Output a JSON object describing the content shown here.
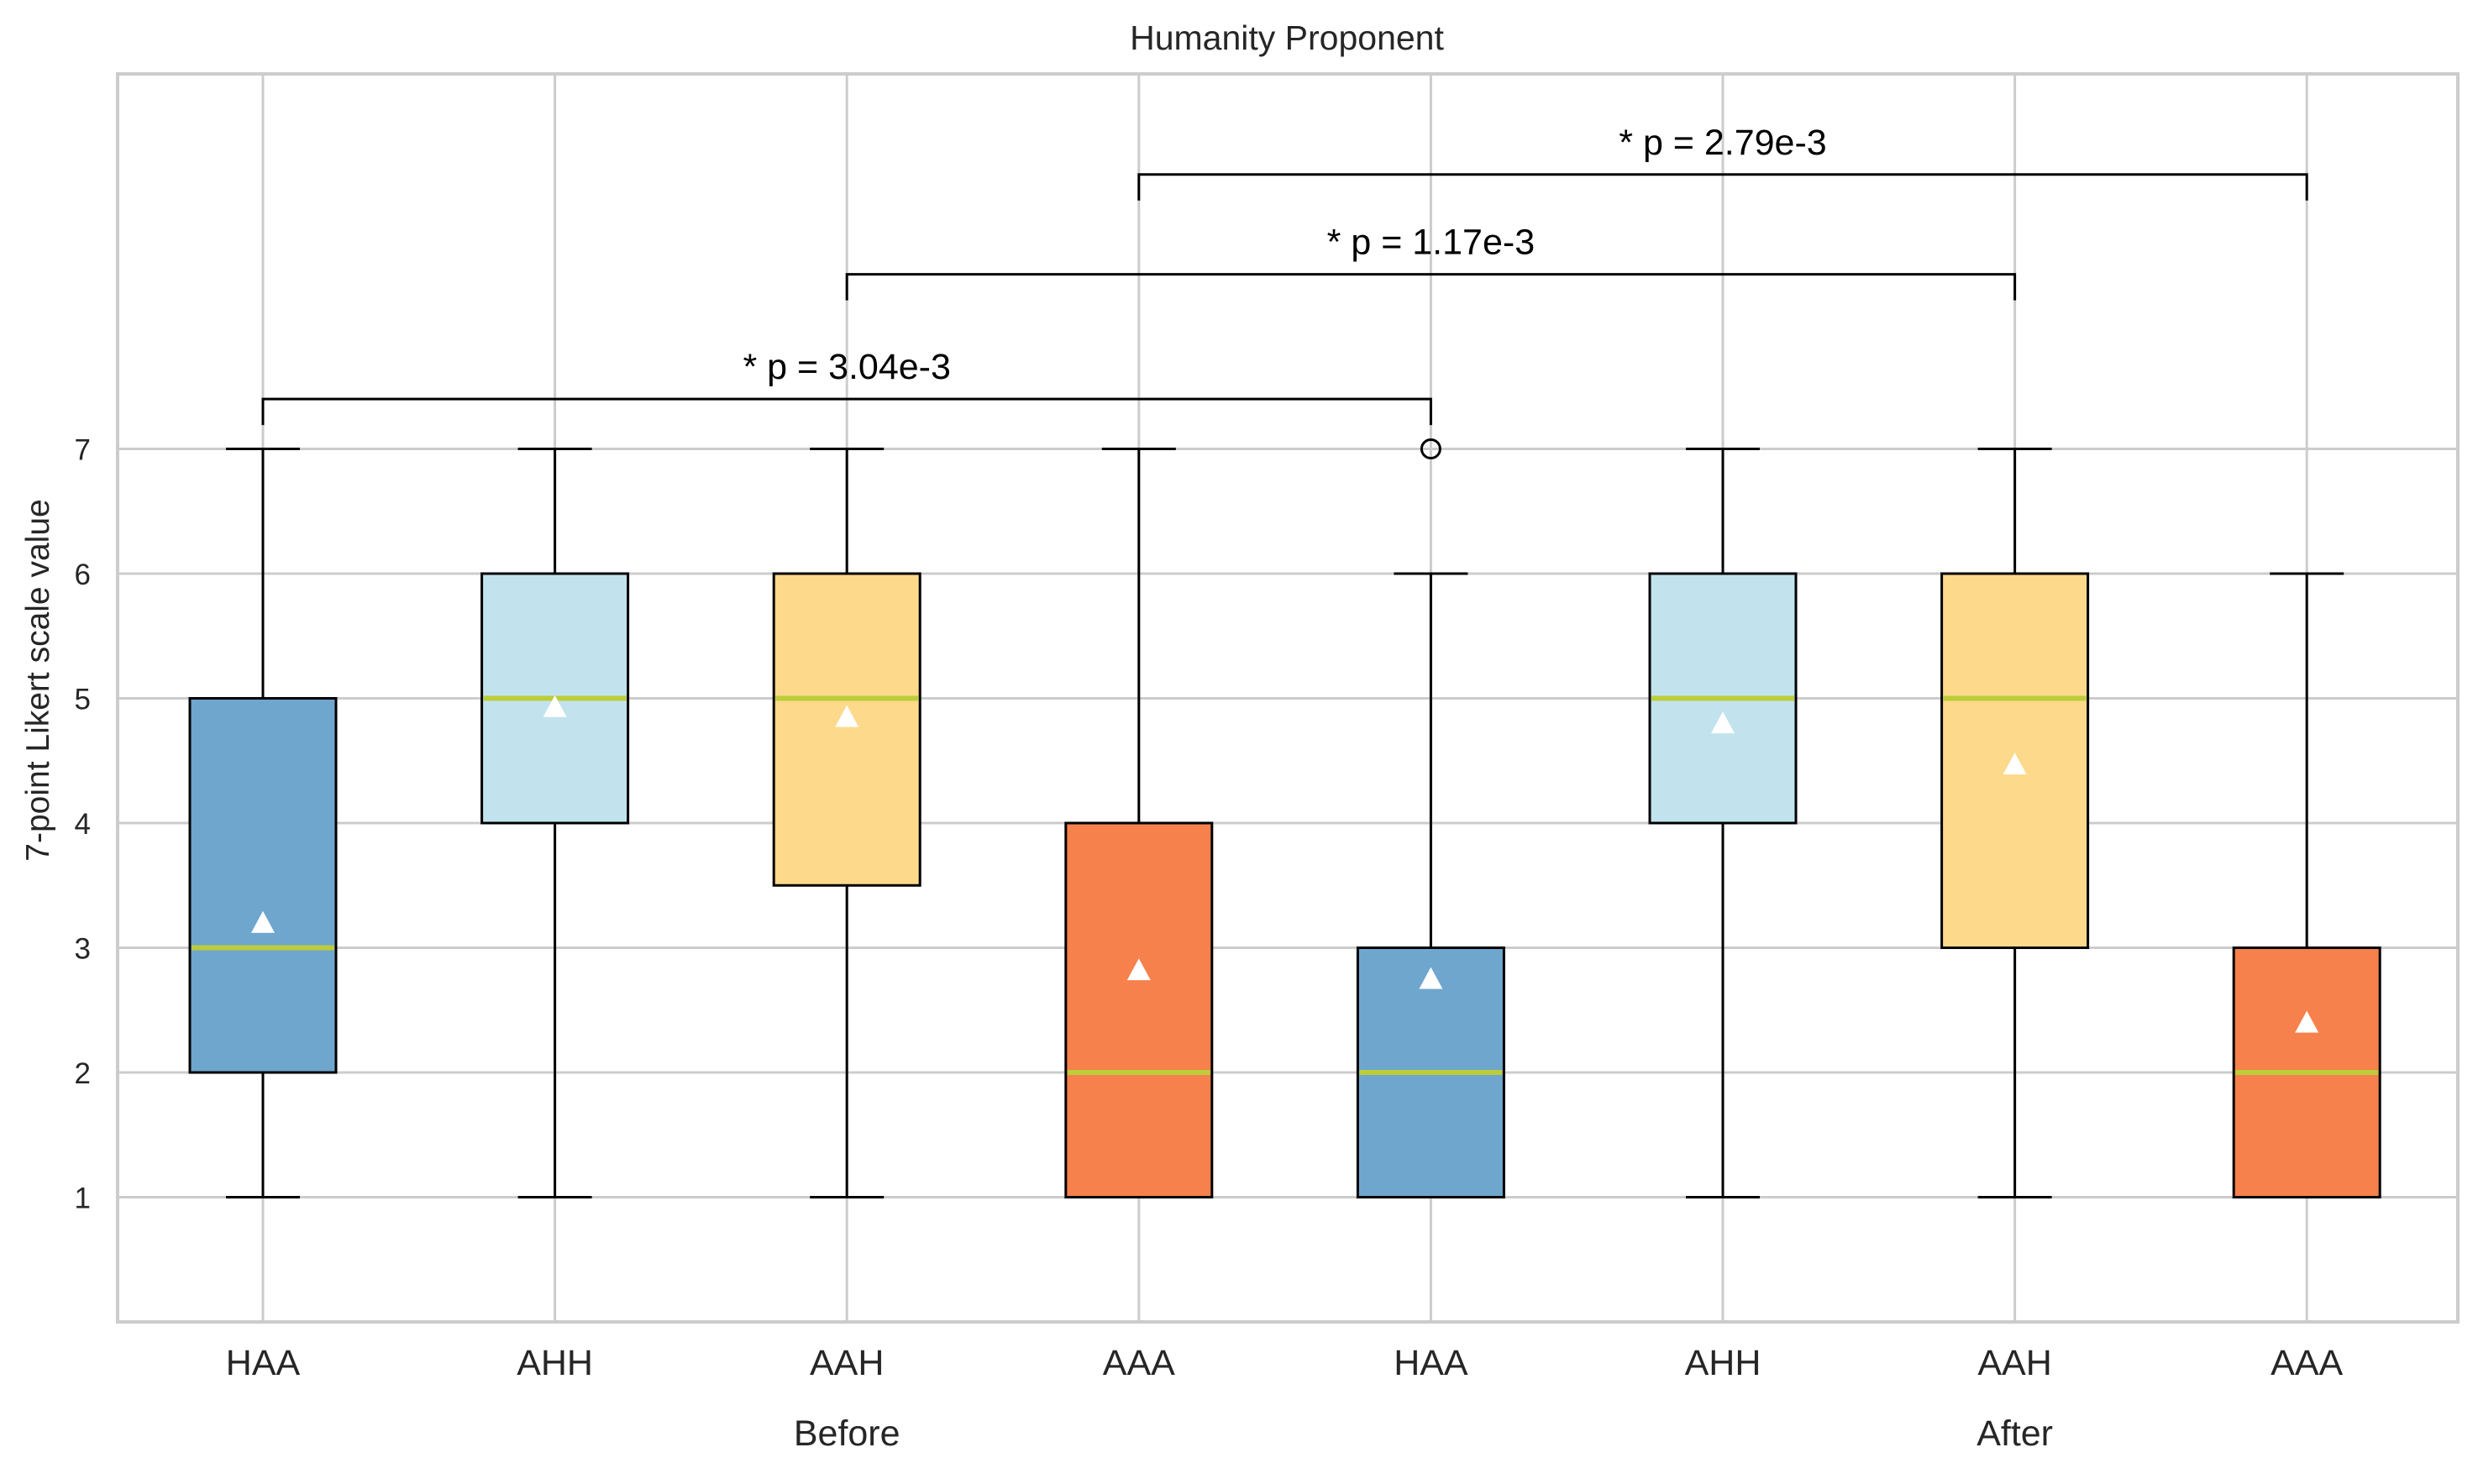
{
  "chart_data": {
    "type": "boxplot",
    "title": "Humanity Proponent",
    "ylabel": "7-point Likert scale value",
    "xlabel": "",
    "ylim": [
      0,
      9.95
    ],
    "yticks": [
      1,
      2,
      3,
      4,
      5,
      6,
      7
    ],
    "grid": true,
    "group_labels": [
      {
        "label": "Before",
        "center_index": 2
      },
      {
        "label": "After",
        "center_index": 6
      }
    ],
    "boxes": [
      {
        "category": "HAA",
        "group": "Before",
        "color": "#6fa6cd",
        "whisker_low": 1,
        "q1": 2,
        "median": 3,
        "q3": 5,
        "whisker_high": 7,
        "mean": 3.2,
        "outliers": []
      },
      {
        "category": "AHH",
        "group": "Before",
        "color": "#c2e3ee",
        "whisker_low": 1,
        "q1": 4,
        "median": 5,
        "q3": 6,
        "whisker_high": 7,
        "mean": 4.93,
        "outliers": []
      },
      {
        "category": "AAH",
        "group": "Before",
        "color": "#fdd98b",
        "whisker_low": 1,
        "q1": 3.5,
        "median": 5,
        "q3": 6,
        "whisker_high": 7,
        "mean": 4.85,
        "outliers": []
      },
      {
        "category": "AAA",
        "group": "Before",
        "color": "#f6814c",
        "whisker_low": 1,
        "q1": 1,
        "median": 2,
        "q3": 4,
        "whisker_high": 7,
        "mean": 2.82,
        "outliers": []
      },
      {
        "category": "HAA",
        "group": "After",
        "color": "#6fa6cd",
        "whisker_low": 1,
        "q1": 1,
        "median": 2,
        "q3": 3,
        "whisker_high": 6,
        "mean": 2.75,
        "outliers": [
          7
        ]
      },
      {
        "category": "AHH",
        "group": "After",
        "color": "#c2e3ee",
        "whisker_low": 1,
        "q1": 4,
        "median": 5,
        "q3": 6,
        "whisker_high": 7,
        "mean": 4.8,
        "outliers": []
      },
      {
        "category": "AAH",
        "group": "After",
        "color": "#fdd98b",
        "whisker_low": 1,
        "q1": 3,
        "median": 5,
        "q3": 6,
        "whisker_high": 7,
        "mean": 4.47,
        "outliers": []
      },
      {
        "category": "AAA",
        "group": "After",
        "color": "#f6814c",
        "whisker_low": 1,
        "q1": 1,
        "median": 2,
        "q3": 3,
        "whisker_high": 6,
        "mean": 2.4,
        "outliers": []
      }
    ],
    "significance": [
      {
        "from_index": 0,
        "to_index": 4,
        "level": 7.4,
        "label": "* p = 3.04e-3"
      },
      {
        "from_index": 2,
        "to_index": 6,
        "level": 8.4,
        "label": "* p = 1.17e-3"
      },
      {
        "from_index": 3,
        "to_index": 7,
        "level": 9.2,
        "label": "* p = 2.79e-3"
      }
    ],
    "colors": {
      "median": "#bccd3a",
      "mean_marker": "#ffffff",
      "grid": "#cccccc",
      "axes": "#cccccc",
      "box_edge": "#000000"
    }
  }
}
